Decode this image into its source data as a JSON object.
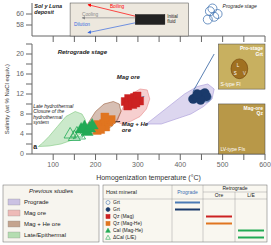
{
  "chart_data": [
    {
      "type": "scatter",
      "xlim": [
        50,
        600
      ],
      "ylim": [
        56,
        62
      ],
      "xticks": [
        100,
        150,
        200,
        250,
        300,
        350,
        400,
        450,
        500,
        550,
        600
      ],
      "yticks": [
        58,
        60
      ],
      "tick_labels": "y",
      "series": [
        {
          "color": "#4a7ab5",
          "marker": "hollow_circle",
          "x": [
            465,
            470,
            476,
            480,
            488
          ],
          "y": [
            59,
            60.5,
            61,
            59.5,
            60
          ]
        }
      ],
      "annotations": [
        "Sol y Luna\ndeposit",
        "Prograde stage"
      ],
      "inset": {
        "label": "Initial\nfluid",
        "arrows": [
          {
            "name": "Boiling",
            "color": "red"
          },
          {
            "name": "Cooling",
            "color": "#888888"
          },
          {
            "name": "Dilution",
            "color": "#3a6adf"
          }
        ]
      }
    },
    {
      "type": "scatter",
      "xlabel": "Homogenization temperature (°C)",
      "ylabel": "Salinity (wt % NaCl equiv.)",
      "xlim": [
        50,
        600
      ],
      "ylim": [
        0,
        22
      ],
      "xticks": [
        100,
        {
          "value": 150,
          "label": ""
        },
        200,
        {
          "value": 250,
          "label": ""
        },
        300,
        {
          "value": 350,
          "label": ""
        },
        400,
        {
          "value": 450,
          "label": ""
        },
        500,
        {
          "value": 550,
          "label": ""
        },
        600
      ],
      "yticks": [
        0,
        {
          "value": 2,
          "label": ""
        },
        4,
        {
          "value": 6,
          "label": ""
        },
        8,
        {
          "value": 10,
          "label": ""
        },
        12,
        {
          "value": 14,
          "label": ""
        },
        16,
        {
          "value": 18,
          "label": ""
        },
        20,
        {
          "value": 22,
          "label": ""
        }
      ],
      "series": [
        {
          "name": "Grt",
          "color": "#4a7ab5",
          "marker": "hollow_circle",
          "column": "Prograde",
          "x": [
            434,
            442,
            450,
            456,
            462
          ],
          "y": [
            11.1,
            11.4,
            11.7,
            12.0,
            11.3
          ]
        },
        {
          "name": "Grt",
          "color": "#1a3a6b",
          "marker": "circle",
          "column": "Prograde",
          "x": [
            430,
            438,
            445,
            452,
            458,
            462,
            448,
            440
          ],
          "y": [
            11.0,
            11.3,
            11.6,
            11.9,
            12.2,
            11.5,
            10.8,
            12.0
          ]
        },
        {
          "name": "Qz (Mag)",
          "color": "#cc2222",
          "marker": "square",
          "column": "Ore",
          "x": [
            270,
            278,
            285,
            292,
            298,
            304,
            276,
            288,
            295
          ],
          "y": [
            10.5,
            11.1,
            10.8,
            11.3,
            11.6,
            10.6,
            9.6,
            9.9,
            10.2
          ]
        },
        {
          "name": "Qz (Mag-He)",
          "color": "#e07520",
          "marker": "square",
          "column": "Ore",
          "x": [
            198,
            206,
            213,
            219,
            224,
            231,
            237,
            204,
            212,
            222
          ],
          "y": [
            5.4,
            5.9,
            5.7,
            6.1,
            5.4,
            6.4,
            6.9,
            4.7,
            4.9,
            7.4
          ]
        },
        {
          "name": "Cal (Mag-He)",
          "color": "#22aa55",
          "marker": "triangle",
          "column": "L/E",
          "x": [
            166,
            174,
            180,
            186,
            192
          ],
          "y": [
            4.9,
            5.4,
            4.4,
            5.1,
            5.7
          ]
        },
        {
          "name": "ΔCal (L/E)",
          "color": "#22aa55",
          "marker": "hollow_triangle",
          "column": "L/E",
          "x": [
            140,
            150,
            156,
            162
          ],
          "y": [
            3.9,
            3.4,
            4.1,
            3.7
          ]
        }
      ],
      "regions": {
        "title": "Previous studies",
        "series": [
          {
            "name": "Prograde",
            "color": "#a898d8",
            "x": [
              320,
              350,
              380,
              410,
              440,
              465,
              480,
              475,
              455,
              425,
              390,
              355,
              320
            ],
            "y": [
              6.0,
              8.0,
              10.0,
              12.0,
              13.5,
              14.0,
              13.0,
              11.0,
              9.5,
              8.0,
              7.0,
              6.0,
              6.0
            ]
          },
          {
            "name": "Mag ore",
            "color": "#e88888",
            "x": [
              248,
              260,
              272,
              285,
              305,
              322,
              328,
              320,
              305,
              282,
              262,
              248
            ],
            "y": [
              6.5,
              8.5,
              10.5,
              12.0,
              13.0,
              12.8,
              11.0,
              9.0,
              7.5,
              6.5,
              6.0,
              6.5
            ]
          },
          {
            "name": "Mag + He ore",
            "color": "#9b6040",
            "x": [
              170,
              185,
              200,
              220,
              242,
              256,
              260,
              252,
              238,
              215,
              192,
              175,
              170
            ],
            "y": [
              4.5,
              6.5,
              8.5,
              10.0,
              10.5,
              10.0,
              8.5,
              6.8,
              5.5,
              4.5,
              4.0,
              4.0,
              4.5
            ]
          },
          {
            "name": "Late/Epithermal",
            "color": "#7dc87d",
            "x": [
              65,
              75,
              90,
              110,
              130,
              152,
              168,
              176,
              175,
              162,
              145,
              118,
              90,
              65
            ],
            "y": [
              1.5,
              2.2,
              3.5,
              5.5,
              7.5,
              8.5,
              8.0,
              6.8,
              5.2,
              3.8,
              2.8,
              2.0,
              1.6,
              1.5
            ]
          }
        ]
      },
      "lines": [
        {
          "x": [
            430,
            480
          ],
          "y": [
            12.5,
            20
          ],
          "color": "#3060a0",
          "line_style": "solid"
        },
        {
          "x": [
            315,
            283
          ],
          "y": [
            11.5,
            10.8
          ],
          "color": "#2060a0",
          "line_style": "arrow"
        },
        {
          "x": [
            258,
            230
          ],
          "y": [
            6.5,
            6.3
          ],
          "color": "#000000",
          "line_style": "arrow"
        }
      ],
      "annotations": [
        "Retrograde stage",
        "Mag ore",
        "Mag + He\nore",
        "Late hydrothermal\nClosure of the\nhydrothermal\nsystem",
        "a"
      ],
      "photos": [
        {
          "texts": [
            "Pro-stage\nGrt",
            "S-type FI",
            "L",
            "V",
            "S"
          ]
        },
        {
          "texts": [
            "Mag-ore\nQz",
            "LV-type FIs"
          ]
        }
      ],
      "table": {
        "title": "Host mineral",
        "header": "Retrograde",
        "columns": [
          "Prograde",
          "Ore",
          "L/E"
        ]
      }
    }
  ]
}
